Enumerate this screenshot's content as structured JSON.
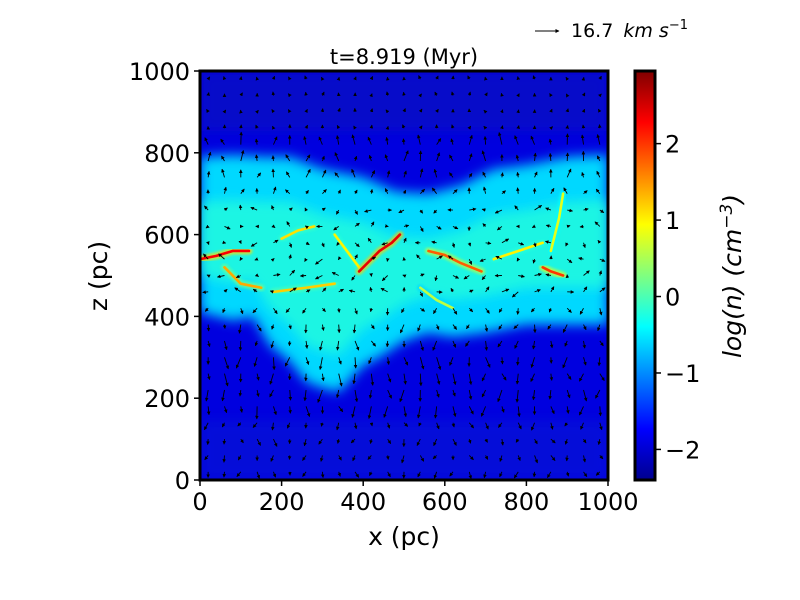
{
  "chart_data": {
    "type": "heatmap",
    "title": "t=8.919 (Myr)",
    "xlabel": "x (pc)",
    "ylabel": "z (pc)",
    "xlim": [
      0,
      1000
    ],
    "ylim": [
      0,
      1000
    ],
    "x_ticks": [
      "0",
      "200",
      "400",
      "600",
      "800",
      "1000"
    ],
    "y_ticks": [
      "0",
      "200",
      "400",
      "600",
      "800",
      "1000"
    ],
    "x_tick_values": [
      0,
      200,
      400,
      600,
      800,
      1000
    ],
    "y_tick_values": [
      0,
      200,
      400,
      600,
      800,
      1000
    ],
    "grid": false,
    "quiver_key": {
      "label": "16.7",
      "unit": "km s",
      "exponent": "−1"
    },
    "colorbar": {
      "label": "log(n) (cm",
      "label_exponent": "−3",
      "label_close": ")",
      "range": [
        -2.4,
        2.95
      ],
      "ticks": [
        "−2",
        "−1",
        "0",
        "1",
        "2"
      ],
      "tick_values": [
        -2,
        -1,
        0,
        1,
        2
      ],
      "colormap": "jet"
    },
    "field_description": {
      "background_log_n": -1.9,
      "disk_log_n": -0.6,
      "disk_upper_edge_z": [
        [
          0,
          790
        ],
        [
          80,
          795
        ],
        [
          160,
          790
        ],
        [
          220,
          790
        ],
        [
          300,
          760
        ],
        [
          400,
          740
        ],
        [
          480,
          705
        ],
        [
          560,
          700
        ],
        [
          640,
          720
        ],
        [
          720,
          760
        ],
        [
          800,
          770
        ],
        [
          900,
          790
        ],
        [
          1000,
          795
        ]
      ],
      "disk_lower_edge_z": [
        [
          0,
          410
        ],
        [
          80,
          390
        ],
        [
          130,
          400
        ],
        [
          170,
          330
        ],
        [
          220,
          290
        ],
        [
          260,
          240
        ],
        [
          300,
          225
        ],
        [
          340,
          215
        ],
        [
          400,
          280
        ],
        [
          440,
          300
        ],
        [
          500,
          340
        ],
        [
          560,
          360
        ],
        [
          620,
          350
        ],
        [
          700,
          360
        ],
        [
          800,
          380
        ],
        [
          900,
          380
        ],
        [
          1000,
          380
        ]
      ],
      "dense_filaments": [
        {
          "points": [
            [
              0,
              540
            ],
            [
              40,
              548
            ],
            [
              80,
              560
            ],
            [
              120,
              560
            ]
          ],
          "log_n": 2.3
        },
        {
          "points": [
            [
              60,
              520
            ],
            [
              100,
              480
            ],
            [
              150,
              470
            ]
          ],
          "log_n": 1.4
        },
        {
          "points": [
            [
              180,
              460
            ],
            [
              260,
              470
            ],
            [
              330,
              480
            ]
          ],
          "log_n": 1.2
        },
        {
          "points": [
            [
              330,
              600
            ],
            [
              360,
              560
            ],
            [
              390,
              520
            ]
          ],
          "log_n": 1.0
        },
        {
          "points": [
            [
              390,
              510
            ],
            [
              420,
              540
            ],
            [
              440,
              560
            ],
            [
              470,
              580
            ],
            [
              490,
              600
            ]
          ],
          "log_n": 2.4
        },
        {
          "points": [
            [
              560,
              560
            ],
            [
              600,
              550
            ],
            [
              640,
              530
            ],
            [
              690,
              510
            ]
          ],
          "log_n": 1.8
        },
        {
          "points": [
            [
              840,
              520
            ],
            [
              860,
              510
            ],
            [
              890,
              500
            ]
          ],
          "log_n": 2.0
        },
        {
          "points": [
            [
              720,
              540
            ],
            [
              780,
              560
            ],
            [
              840,
              580
            ]
          ],
          "log_n": 1.0
        },
        {
          "points": [
            [
              200,
              590
            ],
            [
              240,
              610
            ],
            [
              280,
              620
            ]
          ],
          "log_n": 1.1
        },
        {
          "points": [
            [
              860,
              560
            ],
            [
              880,
              640
            ],
            [
              890,
              700
            ]
          ],
          "log_n": 0.8
        },
        {
          "points": [
            [
              540,
              470
            ],
            [
              580,
              440
            ],
            [
              620,
              420
            ]
          ],
          "log_n": 0.6
        }
      ]
    }
  }
}
